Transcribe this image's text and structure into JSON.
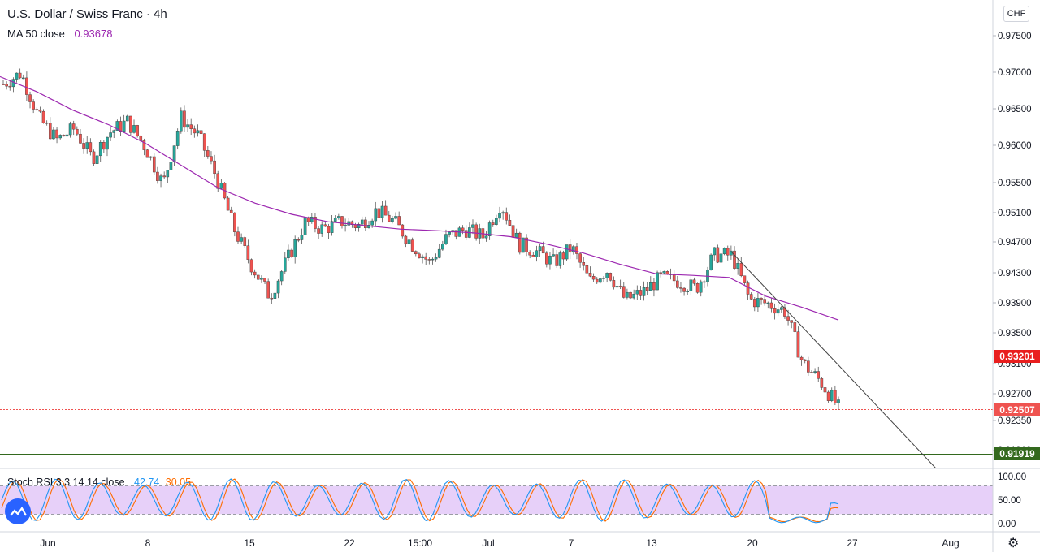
{
  "header": {
    "title": "U.S. Dollar / Swiss Franc · 4h",
    "ma_label": "MA 50 close",
    "ma_value": "0.93678",
    "currency_button": "CHF"
  },
  "stoch": {
    "label": "Stoch RSI 3 3 14 14 close",
    "k_value": "42.74",
    "d_value": "30.05"
  },
  "colors": {
    "up_candle": "#26a69a",
    "down_candle": "#ef5350",
    "ma_line": "#9c27b0",
    "support_line": "#e91e1e",
    "current_line": "#ef5350",
    "lower_line": "#33691e",
    "stoch_k": "#2196f3",
    "stoch_d": "#ff6d00",
    "stoch_band": "#e1c4f7"
  },
  "icons": [
    "tradingview-logo-icon",
    "settings-gear-icon",
    "cursor-icon"
  ],
  "chart_data": [
    {
      "type": "candlestick",
      "title": "U.S. Dollar / Swiss Franc · 4h",
      "ylim": [
        0.919,
        0.9775
      ],
      "y_ticks": [
        "0.97500",
        "0.97000",
        "0.96500",
        "0.96000",
        "0.95500",
        "0.95100",
        "0.94700",
        "0.94300",
        "0.93900",
        "0.93500",
        "0.93100",
        "0.92700",
        "0.92350",
        "0.91919"
      ],
      "x_ticks": [
        "Jun",
        "8",
        "15",
        "22",
        "15:00",
        "Jul",
        "7",
        "13",
        "20",
        "27",
        "Aug"
      ],
      "close_path": [
        0.9685,
        0.97,
        0.964,
        0.961,
        0.9625,
        0.9585,
        0.962,
        0.9635,
        0.96,
        0.955,
        0.964,
        0.9615,
        0.956,
        0.949,
        0.944,
        0.94,
        0.945,
        0.95,
        0.949,
        0.95,
        0.9495,
        0.9515,
        0.95,
        0.947,
        0.9445,
        0.948,
        0.949,
        0.948,
        0.9525,
        0.947,
        0.946,
        0.9445,
        0.9465,
        0.942,
        0.9435,
        0.9395,
        0.9405,
        0.9425,
        0.942,
        0.941,
        0.9455,
        0.9455,
        0.9395,
        0.939,
        0.938,
        0.931,
        0.9285,
        0.925
      ],
      "ma50": {
        "name": "MA 50 close",
        "values": [
          0.9695,
          0.9675,
          0.965,
          0.963,
          0.9605,
          0.9575,
          0.9545,
          0.9525,
          0.951,
          0.95,
          0.9495,
          0.949,
          0.9488,
          0.9485,
          0.948,
          0.947,
          0.9458,
          0.9443,
          0.943,
          0.9428,
          0.9425,
          0.94,
          0.9385,
          0.9368
        ]
      },
      "horizontal_lines": [
        {
          "label": "0.93201",
          "value": 0.93201,
          "style": "solid",
          "color": "#e91e1e"
        },
        {
          "label": "0.92507",
          "value": 0.92507,
          "style": "dotted",
          "color": "#ef5350"
        },
        {
          "label": "0.91919",
          "value": 0.91919,
          "style": "solid",
          "color": "#33691e"
        }
      ],
      "trendline": {
        "from": [
          0.9458,
          "Jul 19"
        ],
        "to": [
          0.919,
          "Jul 28"
        ]
      }
    },
    {
      "type": "line",
      "title": "Stoch RSI 3 3 14 14 close",
      "ylim": [
        0,
        100
      ],
      "y_ticks": [
        "100.00",
        "50.00",
        "0.00"
      ],
      "band": [
        20,
        80
      ],
      "series": [
        {
          "name": "K",
          "last": 42.74
        },
        {
          "name": "D",
          "last": 30.05
        }
      ]
    }
  ]
}
